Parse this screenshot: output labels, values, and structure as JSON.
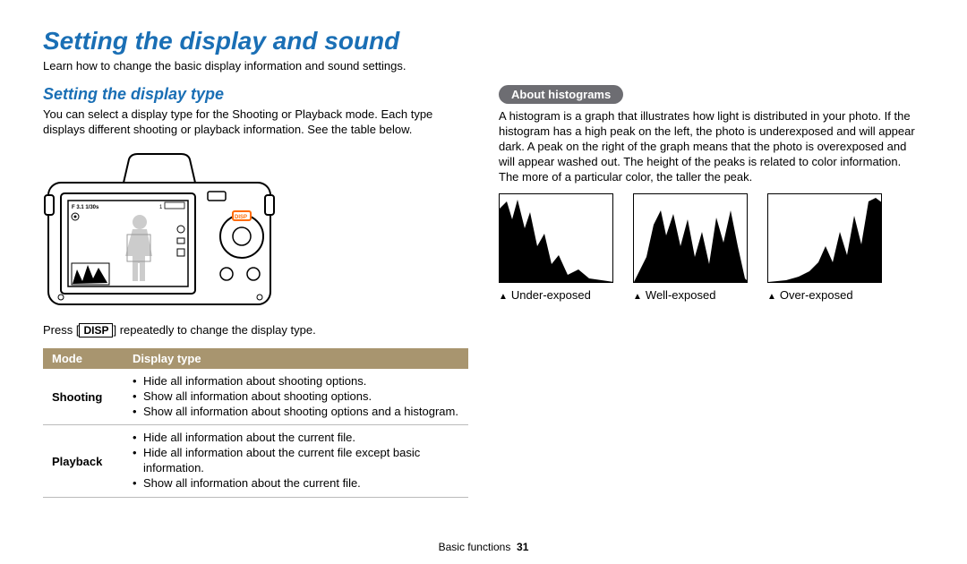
{
  "page": {
    "title": "Setting the display and sound",
    "intro": "Learn how to change the basic display information and sound settings.",
    "footer_section": "Basic functions",
    "footer_page": "31"
  },
  "left": {
    "section_title": "Setting the display type",
    "body": "You can select a display type for the Shooting or Playback mode. Each type displays different shooting or playback information. See the table below.",
    "press_pre": "Press [",
    "press_btn": "DISP",
    "press_post": "] repeatedly to change the display type.",
    "table": {
      "header_mode": "Mode",
      "header_displaytype": "Display type",
      "rows": [
        {
          "mode": "Shooting",
          "items": [
            "Hide all information about shooting options.",
            "Show all information about shooting options.",
            "Show all information about shooting options and a histogram."
          ]
        },
        {
          "mode": "Playback",
          "items": [
            "Hide all information about the current file.",
            "Hide all information about the current file except basic information.",
            "Show all information about the current file."
          ]
        }
      ]
    }
  },
  "right": {
    "callout_title": "About histograms",
    "body": "A histogram is a graph that illustrates how light is distributed in your photo. If the histogram has a high peak on the left, the photo is underexposed and will appear dark. A peak on the right of the graph means that the photo is overexposed and will appear washed out. The height of the peaks is related to color information. The more of a particular color, the taller the peak.",
    "histograms": [
      {
        "caption": "Under-exposed",
        "shape": "under"
      },
      {
        "caption": "Well-exposed",
        "shape": "well"
      },
      {
        "caption": "Over-exposed",
        "shape": "over"
      }
    ]
  },
  "style": {
    "accent_color": "#1a6fb5",
    "table_header_bg": "#a8956f",
    "callout_bg": "#6d6d72"
  }
}
